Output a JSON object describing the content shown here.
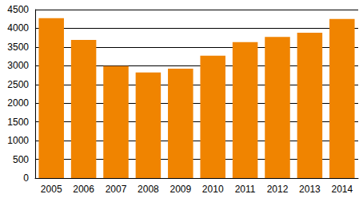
{
  "chart_data": {
    "type": "bar",
    "categories": [
      "2005",
      "2006",
      "2007",
      "2008",
      "2009",
      "2010",
      "2011",
      "2012",
      "2013",
      "2014"
    ],
    "values": [
      4270,
      3690,
      2990,
      2820,
      2920,
      3270,
      3630,
      3770,
      3880,
      4250
    ],
    "color": "#f08400",
    "ylim": [
      0,
      4500
    ],
    "yticks": [
      0,
      500,
      1000,
      1500,
      2000,
      2500,
      3000,
      3500,
      4000,
      4500
    ],
    "grid": true
  }
}
